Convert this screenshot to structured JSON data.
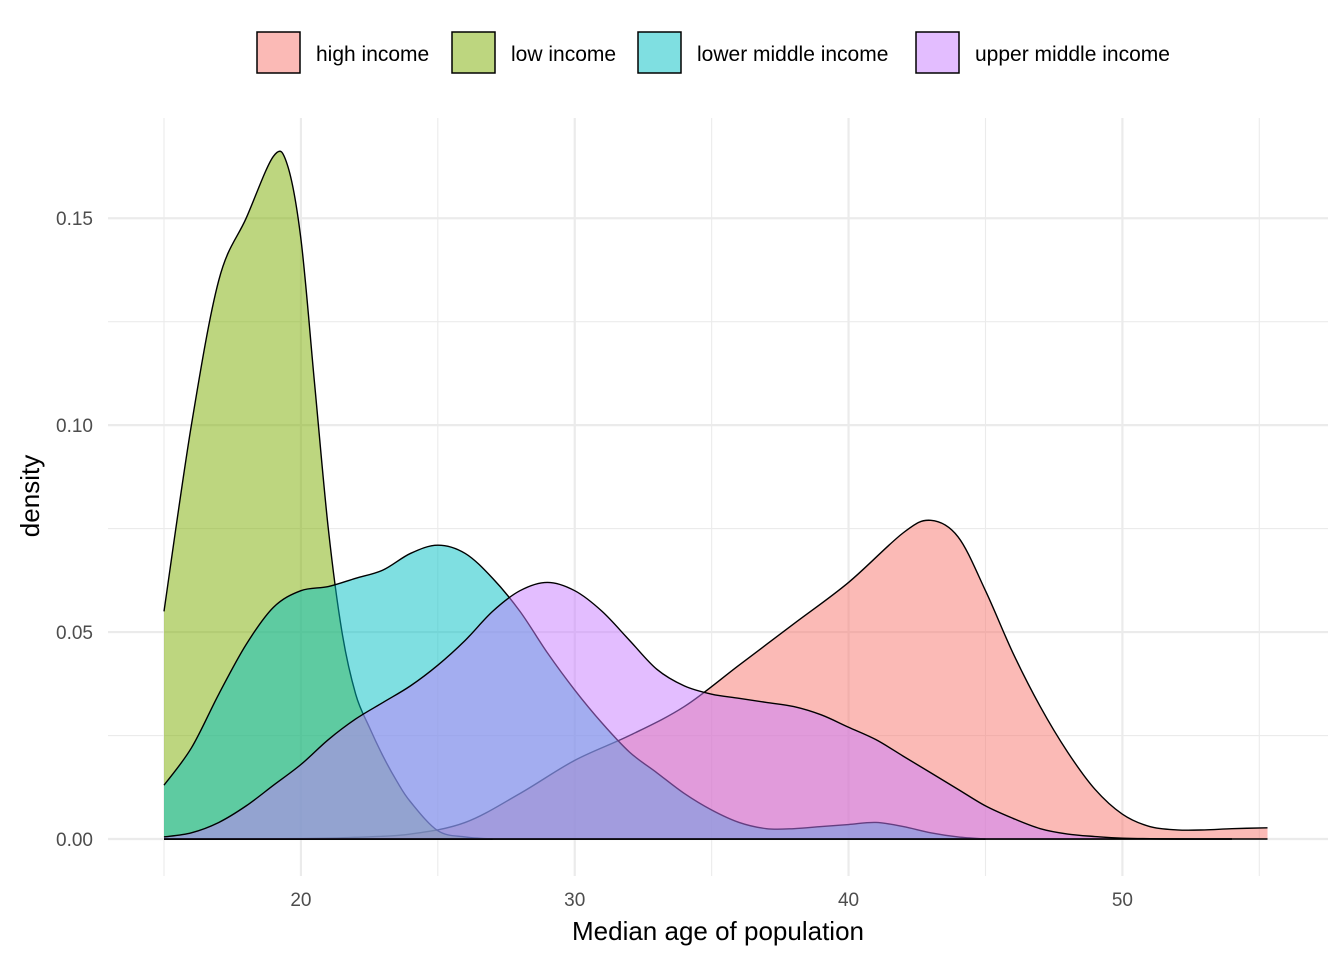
{
  "chart_data": {
    "type": "area",
    "title": "",
    "xlabel": "Median age of population",
    "ylabel": "density",
    "xlim": [
      15,
      55.5
    ],
    "ylim": [
      0,
      0.166
    ],
    "x_ticks": [
      20,
      30,
      40,
      50
    ],
    "x_tick_labels": [
      "20",
      "30",
      "40",
      "50"
    ],
    "y_ticks": [
      0.0,
      0.05,
      0.1,
      0.15
    ],
    "y_tick_labels": [
      "0.00",
      "0.05",
      "0.10",
      "0.15"
    ],
    "grid": true,
    "legend_position": "top",
    "fill_opacity": 0.5,
    "series": [
      {
        "name": "high income",
        "color": "#F8766D",
        "x": [
          15,
          20,
          22,
          24,
          26,
          28,
          30,
          32,
          34,
          36,
          38,
          40,
          42,
          43,
          44,
          45,
          46,
          47,
          48,
          49,
          50,
          51,
          52,
          53,
          54,
          55.3
        ],
        "y": [
          0.0,
          0.0001,
          0.0004,
          0.0012,
          0.004,
          0.011,
          0.019,
          0.025,
          0.032,
          0.042,
          0.052,
          0.062,
          0.074,
          0.077,
          0.073,
          0.06,
          0.045,
          0.032,
          0.021,
          0.012,
          0.006,
          0.003,
          0.0022,
          0.0022,
          0.0025,
          0.0027
        ]
      },
      {
        "name": "low income",
        "color": "#7CAE00",
        "x": [
          15,
          16,
          17,
          18,
          19,
          19.5,
          20,
          20.5,
          21,
          21.5,
          22,
          22.5,
          23,
          23.5,
          24,
          25,
          26,
          27
        ],
        "y": [
          0.055,
          0.1,
          0.135,
          0.15,
          0.165,
          0.163,
          0.145,
          0.11,
          0.075,
          0.05,
          0.035,
          0.027,
          0.02,
          0.014,
          0.009,
          0.002,
          0.0005,
          0.0
        ]
      },
      {
        "name": "lower middle income",
        "color": "#00BFC4",
        "x": [
          15,
          16,
          17,
          18,
          19,
          20,
          21,
          22,
          23,
          24,
          25,
          26,
          27,
          28,
          29,
          30,
          31,
          32,
          33,
          34,
          35,
          36,
          37,
          38,
          39,
          40,
          41,
          42,
          43,
          44,
          45
        ],
        "y": [
          0.013,
          0.022,
          0.035,
          0.047,
          0.056,
          0.06,
          0.061,
          0.063,
          0.065,
          0.069,
          0.071,
          0.069,
          0.063,
          0.055,
          0.045,
          0.036,
          0.028,
          0.021,
          0.016,
          0.011,
          0.007,
          0.004,
          0.0025,
          0.0025,
          0.003,
          0.0035,
          0.004,
          0.003,
          0.0015,
          0.0005,
          0.0
        ]
      },
      {
        "name": "upper middle income",
        "color": "#C77CFF",
        "x": [
          15,
          16,
          17,
          18,
          19,
          20,
          21,
          22,
          23,
          24,
          25,
          26,
          27,
          28,
          29,
          30,
          31,
          32,
          33,
          34,
          35,
          36,
          37,
          38,
          39,
          40,
          41,
          42,
          43,
          44,
          45,
          46,
          47,
          48,
          49,
          50,
          52,
          54
        ],
        "y": [
          0.0005,
          0.0015,
          0.004,
          0.008,
          0.013,
          0.018,
          0.024,
          0.029,
          0.033,
          0.037,
          0.042,
          0.048,
          0.055,
          0.06,
          0.062,
          0.06,
          0.055,
          0.048,
          0.041,
          0.037,
          0.035,
          0.034,
          0.033,
          0.032,
          0.03,
          0.027,
          0.024,
          0.02,
          0.016,
          0.012,
          0.008,
          0.005,
          0.0025,
          0.0012,
          0.0006,
          0.0002,
          0.0,
          0.0
        ]
      }
    ]
  }
}
